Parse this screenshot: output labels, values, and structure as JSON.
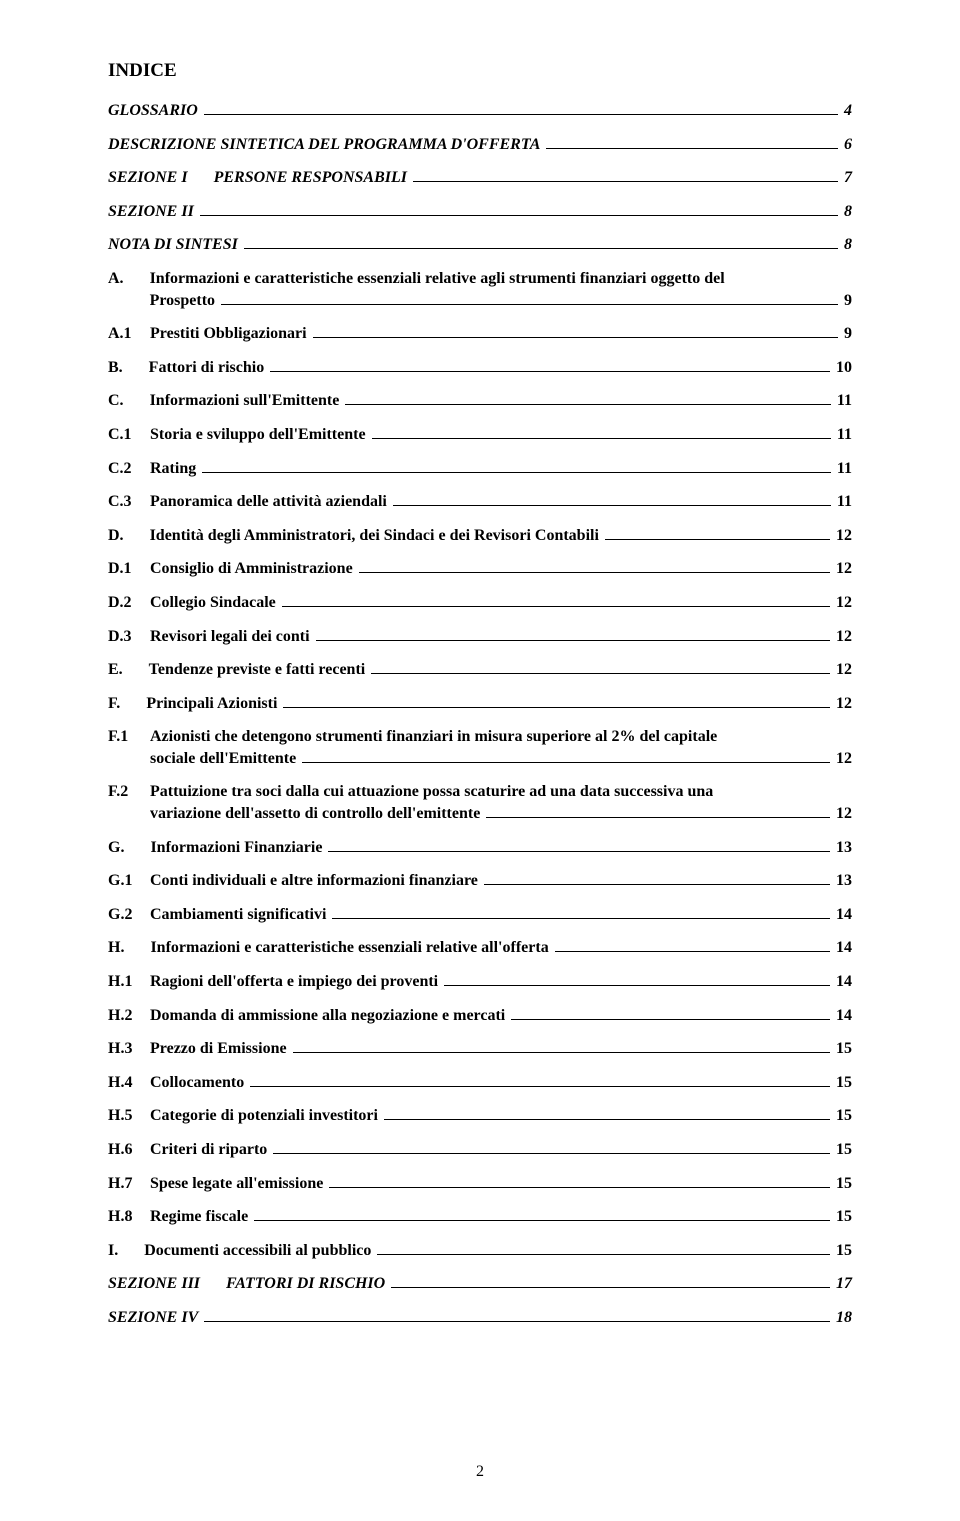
{
  "title": "INDICE",
  "pageNumber": "2",
  "entries": [
    {
      "prefix": "",
      "text": "GLOSSARIO",
      "page": "4",
      "italic": true,
      "indent": 0
    },
    {
      "prefix": "",
      "text": "DESCRIZIONE SINTETICA DEL PROGRAMMA D'OFFERTA",
      "page": "6",
      "italic": true,
      "indent": 0
    },
    {
      "prefix": "SEZIONE I",
      "gap": true,
      "text": "PERSONE RESPONSABILI",
      "page": "7",
      "italic": true,
      "indent": 0
    },
    {
      "prefix": "SEZIONE II",
      "text": "",
      "page": "8",
      "italic": true,
      "indent": 0
    },
    {
      "prefix": "",
      "text": "NOTA DI SINTESI",
      "page": "8",
      "italic": true,
      "indent": 0
    },
    {
      "prefix": "A.",
      "gap": true,
      "text": "Informazioni e caratteristiche essenziali relative agli strumenti finanziari oggetto del Prospetto",
      "page": "9",
      "italic": false,
      "indent": 0,
      "multiline": true
    },
    {
      "prefix": "A.1",
      "text": "Prestiti Obbligazionari",
      "page": "9",
      "italic": false,
      "indent": 1
    },
    {
      "prefix": "B.",
      "gap": true,
      "text": "Fattori di rischio",
      "page": "10",
      "italic": false,
      "indent": 0
    },
    {
      "prefix": "C.",
      "gap": true,
      "text": "Informazioni sull'Emittente",
      "page": "11",
      "italic": false,
      "indent": 0
    },
    {
      "prefix": "C.1",
      "text": "Storia e sviluppo dell'Emittente",
      "page": "11",
      "italic": false,
      "indent": 1
    },
    {
      "prefix": "C.2",
      "text": "Rating",
      "page": "11",
      "italic": false,
      "indent": 1
    },
    {
      "prefix": "C.3",
      "text": "Panoramica delle attività aziendali",
      "page": "11",
      "italic": false,
      "indent": 1
    },
    {
      "prefix": "D.",
      "gap": true,
      "text": "Identità degli Amministratori, dei Sindaci e dei Revisori Contabili",
      "page": "12",
      "italic": false,
      "indent": 0
    },
    {
      "prefix": "D.1",
      "text": "Consiglio di Amministrazione",
      "page": "12",
      "italic": false,
      "indent": 1
    },
    {
      "prefix": "D.2",
      "text": "Collegio Sindacale",
      "page": "12",
      "italic": false,
      "indent": 1
    },
    {
      "prefix": "D.3",
      "text": "Revisori legali dei conti",
      "page": "12",
      "italic": false,
      "indent": 1
    },
    {
      "prefix": "E.",
      "gap": true,
      "text": "Tendenze previste e fatti recenti",
      "page": "12",
      "italic": false,
      "indent": 0
    },
    {
      "prefix": "F.",
      "gap": true,
      "text": "Principali Azionisti",
      "page": "12",
      "italic": false,
      "indent": 0
    },
    {
      "prefix": "F.1",
      "text": "Azionisti che detengono strumenti finanziari in misura superiore al 2% del capitale sociale dell'Emittente",
      "page": "12",
      "italic": false,
      "indent": 1,
      "multiline": true
    },
    {
      "prefix": "F.2",
      "text": "Pattuizione tra soci dalla cui attuazione possa scaturire ad una data successiva una variazione dell'assetto di controllo dell'emittente",
      "page": "12",
      "italic": false,
      "indent": 1,
      "multiline": true
    },
    {
      "prefix": "G.",
      "gap": true,
      "text": "Informazioni Finanziarie",
      "page": "13",
      "italic": false,
      "indent": 0
    },
    {
      "prefix": "G.1",
      "text": "Conti individuali e altre informazioni finanziare",
      "page": "13",
      "italic": false,
      "indent": 1
    },
    {
      "prefix": "G.2",
      "text": "Cambiamenti significativi",
      "page": "14",
      "italic": false,
      "indent": 1
    },
    {
      "prefix": "H.",
      "gap": true,
      "text": "Informazioni e caratteristiche essenziali relative all'offerta",
      "page": "14",
      "italic": false,
      "indent": 0
    },
    {
      "prefix": "H.1",
      "text": "Ragioni dell'offerta e impiego dei proventi",
      "page": "14",
      "italic": false,
      "indent": 1
    },
    {
      "prefix": "H.2",
      "text": "Domanda di ammissione alla negoziazione e mercati",
      "page": "14",
      "italic": false,
      "indent": 1
    },
    {
      "prefix": "H.3",
      "text": "Prezzo di Emissione",
      "page": "15",
      "italic": false,
      "indent": 1
    },
    {
      "prefix": "H.4",
      "text": "Collocamento",
      "page": "15",
      "italic": false,
      "indent": 1
    },
    {
      "prefix": "H.5",
      "text": "Categorie di potenziali investitori",
      "page": "15",
      "italic": false,
      "indent": 1
    },
    {
      "prefix": "H.6",
      "text": "Criteri di riparto",
      "page": "15",
      "italic": false,
      "indent": 1
    },
    {
      "prefix": "H.7",
      "text": "Spese legate all'emissione",
      "page": "15",
      "italic": false,
      "indent": 1
    },
    {
      "prefix": "H.8",
      "text": "Regime fiscale",
      "page": "15",
      "italic": false,
      "indent": 1
    },
    {
      "prefix": "I.",
      "gap": true,
      "text": "Documenti accessibili al pubblico",
      "page": "15",
      "italic": false,
      "indent": 0
    },
    {
      "prefix": "SEZIONE III",
      "gap": true,
      "text": "FATTORI DI RISCHIO",
      "page": "17",
      "italic": true,
      "indent": 0
    },
    {
      "prefix": "SEZIONE IV",
      "text": "",
      "page": "18",
      "italic": true,
      "indent": 0
    }
  ]
}
